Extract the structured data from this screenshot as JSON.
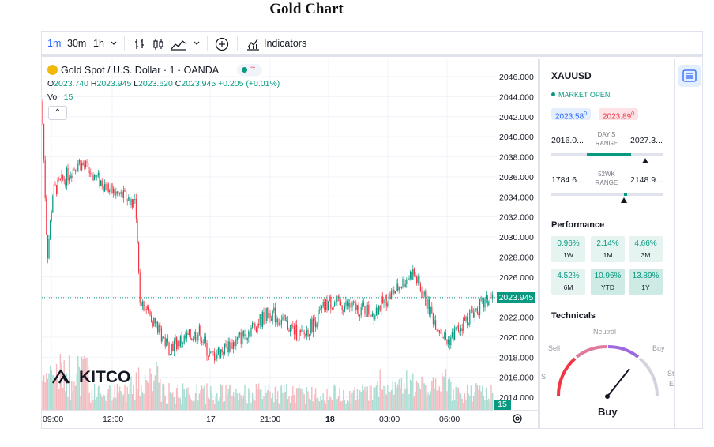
{
  "page": {
    "title": "Gold Chart"
  },
  "toolbar": {
    "intervals": [
      "1m",
      "30m",
      "1h"
    ],
    "active_interval": "1m",
    "indicators_label": "Indicators"
  },
  "legend": {
    "title": "Gold Spot / U.S. Dollar · 1 · OANDA",
    "o_label": "O",
    "o": "2023.740",
    "h_label": "H",
    "h": "2023.945",
    "l_label": "L",
    "l": "2023.620",
    "c_label": "C",
    "c": "2023.945",
    "change": "+0.205 (+0.01%)",
    "vol_label": "Vol",
    "vol": "15",
    "collapse_glyph": "⌃"
  },
  "watermark": "KITCO",
  "current_price_tag": "2023.945",
  "volume_tag": "15",
  "colors": {
    "up": "#089981",
    "down": "#f23645",
    "accent": "#2962ff",
    "vol_up": "#a9dcd2",
    "vol_down": "#f5b8bd"
  },
  "chart_data": {
    "type": "candlestick",
    "title": "Gold Chart",
    "symbol": "Gold Spot / U.S. Dollar",
    "interval": "1",
    "source": "OANDA",
    "y_ticks": [
      "2046.000",
      "2044.000",
      "2042.000",
      "2040.000",
      "2038.000",
      "2036.000",
      "2034.000",
      "2032.000",
      "2030.000",
      "2028.000",
      "2026.000",
      "2024.000",
      "2022.000",
      "2020.000",
      "2018.000",
      "2016.000",
      "2014.000"
    ],
    "ylim": [
      2013,
      2047
    ],
    "x_ticks": [
      {
        "label": "09:00",
        "bold": false
      },
      {
        "label": "12:00",
        "bold": false
      },
      {
        "label": "17",
        "bold": false
      },
      {
        "label": "21:00",
        "bold": false
      },
      {
        "label": "18",
        "bold": true
      },
      {
        "label": "03:00",
        "bold": false
      },
      {
        "label": "06:00",
        "bold": false
      }
    ],
    "approx_close_path": [
      {
        "t": "09:00",
        "price": 2043.5
      },
      {
        "t": "09:30",
        "price": 2028.0
      },
      {
        "t": "10:30",
        "price": 2034.5
      },
      {
        "t": "11:00",
        "price": 2037.5
      },
      {
        "t": "12:00",
        "price": 2034.5
      },
      {
        "t": "13:30",
        "price": 2033.5
      },
      {
        "t": "14:00",
        "price": 2024.0
      },
      {
        "t": "15:00",
        "price": 2019.0
      },
      {
        "t": "16:00",
        "price": 2020.5
      },
      {
        "t": "17 00:00",
        "price": 2018.0
      },
      {
        "t": "19:00",
        "price": 2019.5
      },
      {
        "t": "21:00",
        "price": 2022.5
      },
      {
        "t": "22:00",
        "price": 2020.0
      },
      {
        "t": "18 00:00",
        "price": 2023.5
      },
      {
        "t": "02:00",
        "price": 2022.5
      },
      {
        "t": "04:00",
        "price": 2026.5
      },
      {
        "t": "05:00",
        "price": 2022.0
      },
      {
        "t": "06:00",
        "price": 2019.5
      },
      {
        "t": "07:00",
        "price": 2022.5
      },
      {
        "t": "07:45",
        "price": 2023.945
      }
    ],
    "last_price": 2023.945,
    "last_volume": 15
  },
  "time_axis": {
    "labels": [
      "09:00",
      "12:00",
      "17",
      "21:00",
      "18",
      "03:00",
      "06:00"
    ]
  },
  "panel": {
    "symbol": "XAUUSD",
    "market_status": "MARKET OPEN",
    "bid_main": "2023.58",
    "bid_sup": "0",
    "ask_main": "2023.89",
    "ask_sup": "0",
    "day_low": "2016.0...",
    "day_label": "DAY'S RANGE",
    "day_high": "2027.3...",
    "day_pos": 0.84,
    "wk_low": "1784.6...",
    "wk_label": "52WK RANGE",
    "wk_high": "2148.9...",
    "wk_pos": 0.65,
    "performance_title": "Performance",
    "performance": [
      {
        "value": "0.96%",
        "label": "1W",
        "strong": false
      },
      {
        "value": "2.14%",
        "label": "1M",
        "strong": false
      },
      {
        "value": "4.66%",
        "label": "3M",
        "strong": false
      },
      {
        "value": "4.52%",
        "label": "6M",
        "strong": false
      },
      {
        "value": "10.96%",
        "label": "YTD",
        "strong": true
      },
      {
        "value": "13.89%",
        "label": "1Y",
        "strong": true
      }
    ],
    "technicals_title": "Technicals",
    "gauge": {
      "sell": "Sell",
      "neutral": "Neutral",
      "buy": "Buy",
      "strong_sell": "S",
      "strong_buy": "St",
      "strong_buy_2": "E",
      "verdict": "Buy"
    }
  }
}
